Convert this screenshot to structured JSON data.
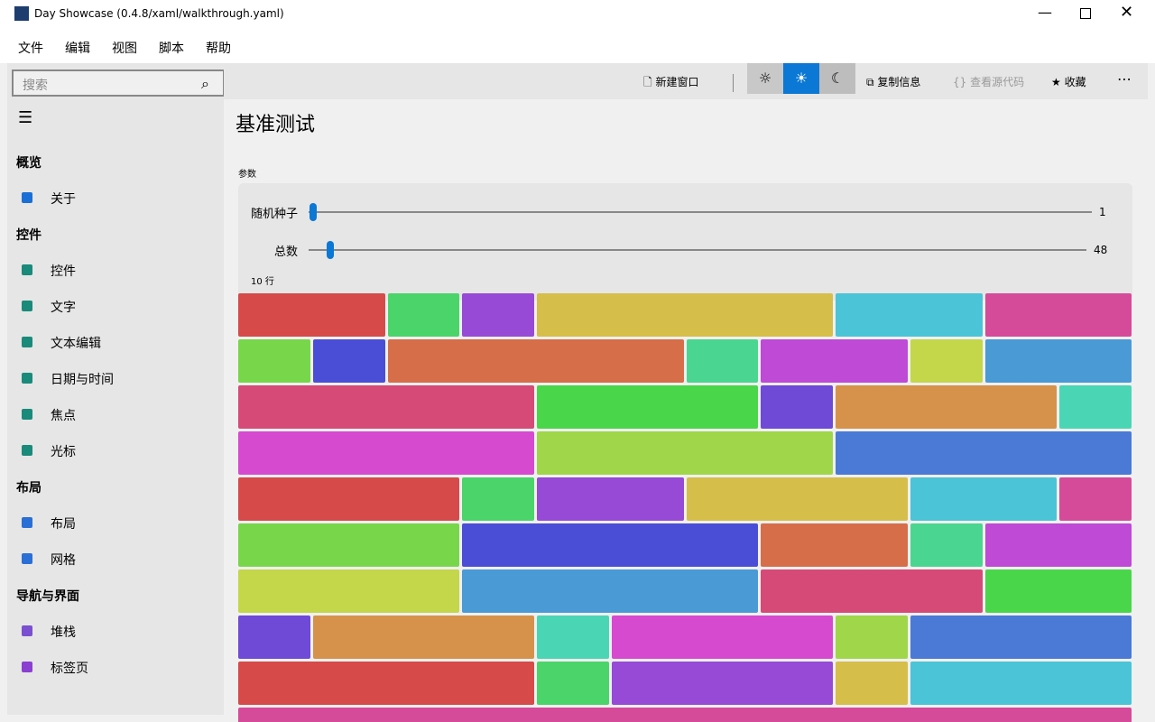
{
  "window": {
    "title": "Day Showcase (0.4.8/xaml/walkthrough.yaml)"
  },
  "menu": [
    "文件",
    "编辑",
    "视图",
    "脚本",
    "帮助"
  ],
  "search": {
    "placeholder": "搜索"
  },
  "toolbar": {
    "new_window": "新建窗口",
    "copy_info": "复制信息",
    "view_source": "查看源代码",
    "favorite": "收藏"
  },
  "sidebar": [
    {
      "section": "概览",
      "items": [
        "关于"
      ]
    },
    {
      "section": "控件",
      "items": [
        "控件",
        "文字",
        "文本编辑",
        "日期与时间",
        "焦点",
        "光标"
      ]
    },
    {
      "section": "布局",
      "items": [
        "布局",
        "网格"
      ]
    },
    {
      "section": "导航与界面",
      "items": [
        "堆栈",
        "标签页"
      ]
    }
  ],
  "page": {
    "title": "基准测试",
    "params_label": "参数",
    "sliders": [
      {
        "label": "随机种子",
        "value": 1
      },
      {
        "label": "总数",
        "value": 48
      }
    ],
    "rows_label": "10 行"
  }
}
